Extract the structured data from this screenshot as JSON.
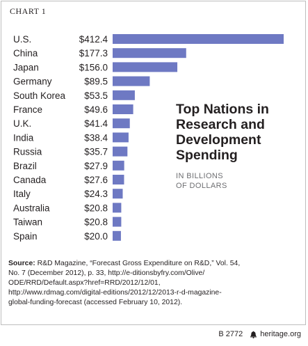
{
  "header": {
    "chart_label": "CHART 1"
  },
  "chart_data": {
    "type": "bar",
    "orientation": "horizontal",
    "title": "Top Nations in Research and Development Spending",
    "subtitle": "IN BILLIONS\nOF DOLLARS",
    "categories": [
      "U.S.",
      "China",
      "Japan",
      "Germany",
      "South Korea",
      "France",
      "U.K.",
      "India",
      "Russia",
      "Brazil",
      "Canada",
      "Italy",
      "Australia",
      "Taiwan",
      "Spain"
    ],
    "values": [
      412.4,
      177.3,
      156.0,
      89.5,
      53.5,
      49.6,
      41.4,
      38.4,
      35.7,
      27.9,
      27.6,
      24.3,
      20.8,
      20.8,
      20.0
    ],
    "value_labels": [
      "$412.4",
      "$177.3",
      "$156.0",
      "$89.5",
      "$53.5",
      "$49.6",
      "$41.4",
      "$38.4",
      "$35.7",
      "$27.9",
      "$27.6",
      "$24.3",
      "$20.8",
      "$20.8",
      "$20.0"
    ],
    "bar_color": "#6e79c3",
    "grid": false
  },
  "source": {
    "label": "Source:",
    "text": " R&D Magazine, “Forecast Gross Expenditure on R&D,” Vol. 54,\nNo. 7 (December 2012), p. 33, http://e-ditionsbyfry.com/Olive/\nODE/RRD/Default.aspx?href=RRD/2012/12/01,\nhttp://www.rdmag.com/digital-editions/2012/12/2013-r-d-magazine-\nglobal-funding-forecast (accessed February 10, 2012)."
  },
  "footer": {
    "code": "B 2772",
    "icon": "liberty-bell-icon",
    "site": "heritage.org"
  }
}
